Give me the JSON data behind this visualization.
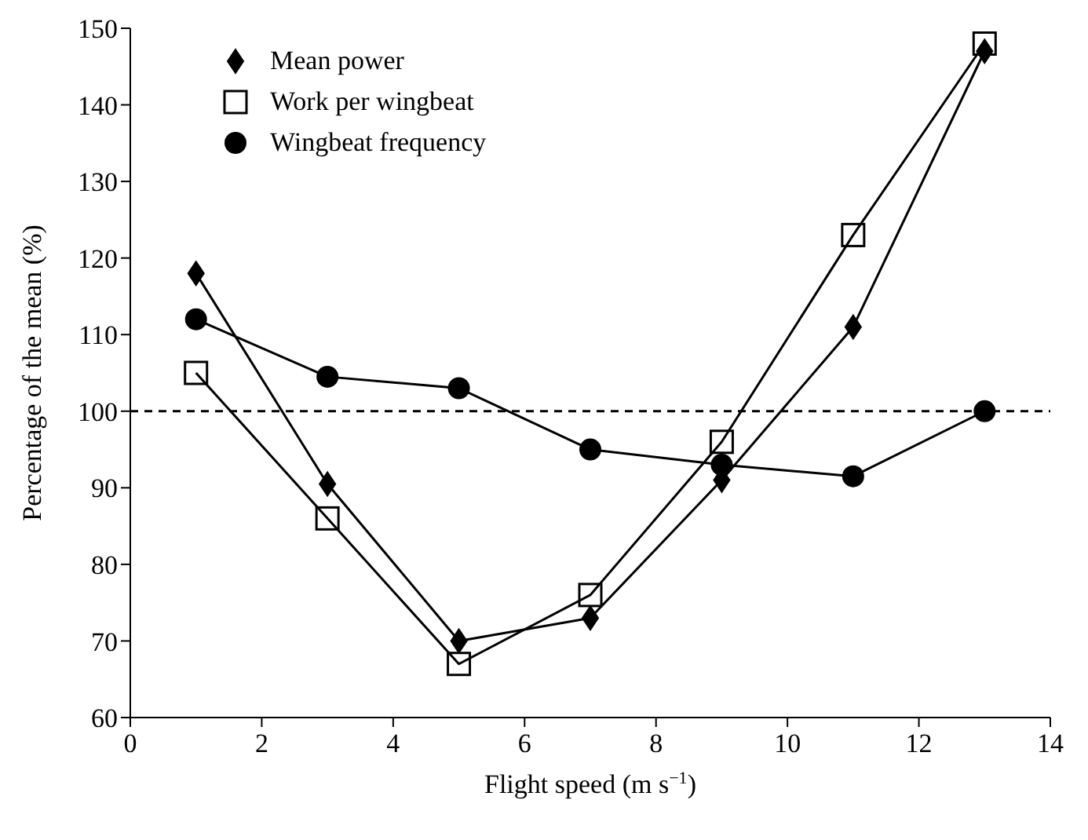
{
  "chart_data": {
    "type": "line",
    "xlabel": "Flight speed (m s$^{−1}$)",
    "ylabel": "Percentage of the mean (%)",
    "x": [
      1,
      3,
      5,
      7,
      9,
      11,
      13
    ],
    "series": [
      {
        "name": "Mean power",
        "color": "#000000",
        "marker": "diamond",
        "values": [
          118,
          90.5,
          70,
          73,
          91,
          111,
          147
        ]
      },
      {
        "name": "Work per wingbeat",
        "color": "#000000",
        "marker": "square",
        "values": [
          105,
          86,
          67,
          76,
          96,
          123,
          148
        ]
      },
      {
        "name": "Wingbeat frequency",
        "color": "#000000",
        "marker": "circle",
        "values": [
          112,
          104.5,
          103,
          95,
          93,
          91.5,
          100
        ]
      }
    ],
    "xlim": [
      0,
      14
    ],
    "xticks": [
      0,
      2,
      4,
      6,
      8,
      10,
      12,
      14
    ],
    "ylim": [
      60,
      150
    ],
    "yticks": [
      60,
      70,
      80,
      90,
      100,
      110,
      120,
      130,
      140,
      150
    ],
    "ref_lines": [
      {
        "axis": "y",
        "value": 100,
        "line_style": "dashed",
        "color": "#000000"
      }
    ],
    "grid": false,
    "legend": "top left",
    "line_style": "solid"
  }
}
